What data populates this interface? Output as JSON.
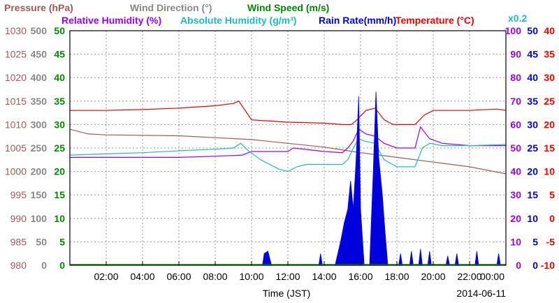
{
  "chart_data": {
    "type": "line",
    "date": "2014-06-11",
    "xlabel": "Time (JST)",
    "xlim": [
      "00:00",
      "24:00"
    ],
    "x_ticks": [
      "02:00",
      "04:00",
      "06:00",
      "08:00",
      "10:00",
      "12:00",
      "14:00",
      "16:00",
      "18:00",
      "20:00",
      "22:00",
      "00:00"
    ],
    "grid": true,
    "legend_rows": [
      [
        {
          "label": "Pressure (hPa)",
          "color": "#a05a5a"
        },
        {
          "label": "Wind Direction (°)",
          "color": "#888888"
        },
        {
          "label": "Wind Speed (m/s)",
          "color": "#008800"
        }
      ],
      [
        {
          "label": "Relative Humidity (%)",
          "color": "#9900ff"
        },
        {
          "label": "Absolute Humidity (g/m³)",
          "color": "#22bbbb"
        },
        {
          "label": "Rain Rate(mm/h)",
          "color": "#0000dd"
        },
        {
          "label": "Temperature (°C)",
          "color": "#ee0000"
        }
      ]
    ],
    "scale_note": "x0.2",
    "axes": {
      "pressure": {
        "color": "#a05a5a",
        "ticks": [
          "980",
          "985",
          "990",
          "995",
          "1000",
          "1005",
          "1010",
          "1015",
          "1020",
          "1025",
          "1030"
        ],
        "ylim": [
          980,
          1030
        ]
      },
      "wind_direction": {
        "color": "#888888",
        "ticks": [
          "0",
          "50",
          "100",
          "150",
          "200",
          "250",
          "300",
          "350",
          "400",
          "450",
          "500"
        ],
        "ylim": [
          0,
          500
        ]
      },
      "wind_speed": {
        "color": "#008800",
        "ticks": [
          "0",
          "5",
          "10",
          "15",
          "20",
          "25",
          "30",
          "35",
          "40",
          "45",
          "50"
        ],
        "ylim": [
          0,
          50
        ]
      },
      "humidity": {
        "color": "#9900ff",
        "ticks": [
          "0",
          "10",
          "20",
          "30",
          "40",
          "50",
          "60",
          "70",
          "80",
          "90",
          "100"
        ],
        "ylim": [
          0,
          100
        ]
      },
      "rain_rate": {
        "color": "#0000dd",
        "ticks": [
          "0",
          "5",
          "10",
          "15",
          "20",
          "25",
          "30",
          "35",
          "40",
          "45",
          "50"
        ],
        "ylim": [
          0,
          50
        ]
      },
      "temperature": {
        "color": "#ee0000",
        "ticks": [
          "-10",
          "-5",
          "0",
          "5",
          "10",
          "15",
          "20",
          "25",
          "30",
          "35",
          "40"
        ],
        "ylim": [
          -10,
          40
        ]
      }
    },
    "series": [
      {
        "name": "Temperature (°C)",
        "axis": "temperature",
        "color": "#ee0000",
        "points": [
          [
            0,
            23
          ],
          [
            2,
            23
          ],
          [
            4,
            23.2
          ],
          [
            6,
            23.5
          ],
          [
            8,
            24
          ],
          [
            9,
            24.5
          ],
          [
            9.3,
            25
          ],
          [
            10,
            21
          ],
          [
            12,
            20.5
          ],
          [
            14,
            20.3
          ],
          [
            15,
            20
          ],
          [
            15.5,
            20
          ],
          [
            15.8,
            21
          ],
          [
            16.3,
            23
          ],
          [
            16.8,
            23.5
          ],
          [
            17.3,
            21
          ],
          [
            17.8,
            20
          ],
          [
            19,
            20
          ],
          [
            19.5,
            22
          ],
          [
            20,
            23
          ],
          [
            22,
            23
          ],
          [
            23.5,
            23.3
          ],
          [
            24,
            23
          ]
        ]
      },
      {
        "name": "Pressure (hPa)",
        "axis": "pressure",
        "color": "#a05a5a",
        "points": [
          [
            0,
            1009
          ],
          [
            1,
            1008
          ],
          [
            2,
            1007.8
          ],
          [
            6,
            1007.6
          ],
          [
            8,
            1007.2
          ],
          [
            10,
            1006.8
          ],
          [
            12,
            1006
          ],
          [
            14,
            1005.2
          ],
          [
            16,
            1004
          ],
          [
            18,
            1003
          ],
          [
            20,
            1002
          ],
          [
            22,
            1001
          ],
          [
            24,
            999.5
          ]
        ]
      },
      {
        "name": "Relative Humidity (%)",
        "axis": "humidity",
        "color": "#9900ff",
        "points": [
          [
            0,
            46
          ],
          [
            2,
            46
          ],
          [
            4,
            46
          ],
          [
            6,
            46
          ],
          [
            8,
            46.5
          ],
          [
            9.5,
            47
          ],
          [
            10,
            48.5
          ],
          [
            12,
            48.5
          ],
          [
            12.3,
            50
          ],
          [
            14,
            48.5
          ],
          [
            15,
            48
          ],
          [
            15.3,
            50
          ],
          [
            15.6,
            53
          ],
          [
            15.9,
            58
          ],
          [
            16.3,
            56
          ],
          [
            16.8,
            55
          ],
          [
            17.3,
            52
          ],
          [
            18,
            50
          ],
          [
            19,
            50
          ],
          [
            19.3,
            59
          ],
          [
            19.8,
            54
          ],
          [
            20.5,
            52
          ],
          [
            22,
            51
          ],
          [
            24,
            51
          ]
        ]
      },
      {
        "name": "Absolute Humidity (g/m³)",
        "axis": "humidity",
        "color": "#22bbbb",
        "points": [
          [
            0,
            47
          ],
          [
            2,
            47.5
          ],
          [
            4,
            48
          ],
          [
            6,
            48.8
          ],
          [
            8,
            49.5
          ],
          [
            9,
            50
          ],
          [
            9.4,
            52
          ],
          [
            9.8,
            49
          ],
          [
            10.5,
            45
          ],
          [
            11,
            43
          ],
          [
            11.5,
            41
          ],
          [
            12,
            40
          ],
          [
            12.5,
            42
          ],
          [
            13,
            43
          ],
          [
            14,
            43
          ],
          [
            15,
            43
          ],
          [
            15.3,
            45
          ],
          [
            15.6,
            50
          ],
          [
            15.9,
            54
          ],
          [
            16.2,
            53
          ],
          [
            16.8,
            52
          ],
          [
            17.3,
            45
          ],
          [
            18,
            42
          ],
          [
            19,
            42
          ],
          [
            19.4,
            50
          ],
          [
            19.8,
            52
          ],
          [
            20.5,
            51
          ],
          [
            22,
            51
          ],
          [
            24,
            51.5
          ]
        ]
      },
      {
        "name": "Rain Rate(mm/h)",
        "axis": "rain_rate",
        "color": "#0000dd",
        "type": "area",
        "points": [
          [
            0,
            0
          ],
          [
            10.6,
            0
          ],
          [
            10.7,
            2.5
          ],
          [
            10.9,
            3
          ],
          [
            11.1,
            0
          ],
          [
            13.7,
            0
          ],
          [
            13.8,
            2.5
          ],
          [
            13.9,
            0
          ],
          [
            14.6,
            0
          ],
          [
            14.9,
            5
          ],
          [
            15.1,
            9
          ],
          [
            15.3,
            12
          ],
          [
            15.45,
            18
          ],
          [
            15.6,
            12
          ],
          [
            15.75,
            22
          ],
          [
            15.9,
            36
          ],
          [
            16,
            12
          ],
          [
            16.2,
            0
          ],
          [
            16.5,
            0
          ],
          [
            16.7,
            20
          ],
          [
            16.85,
            37
          ],
          [
            17,
            23
          ],
          [
            17.2,
            15
          ],
          [
            17.35,
            7
          ],
          [
            17.5,
            0
          ],
          [
            18.1,
            0
          ],
          [
            18.2,
            2.5
          ],
          [
            18.3,
            0
          ],
          [
            18.7,
            0
          ],
          [
            18.8,
            3
          ],
          [
            18.9,
            0
          ],
          [
            19.2,
            0
          ],
          [
            19.3,
            3.5
          ],
          [
            19.4,
            0
          ],
          [
            19.7,
            0
          ],
          [
            19.8,
            3
          ],
          [
            19.9,
            0
          ],
          [
            20.7,
            0
          ],
          [
            20.8,
            2
          ],
          [
            20.9,
            0
          ],
          [
            21.2,
            0
          ],
          [
            21.3,
            2.5
          ],
          [
            21.4,
            0
          ],
          [
            22.3,
            0
          ],
          [
            22.4,
            3
          ],
          [
            22.5,
            0
          ],
          [
            23.5,
            0
          ],
          [
            23.6,
            2.5
          ],
          [
            23.7,
            0
          ],
          [
            24,
            0
          ]
        ]
      },
      {
        "name": "Wind Speed (m/s)",
        "axis": "wind_speed",
        "color": "#008800",
        "points": [
          [
            0,
            0.2
          ],
          [
            24,
            0.2
          ]
        ]
      }
    ]
  }
}
